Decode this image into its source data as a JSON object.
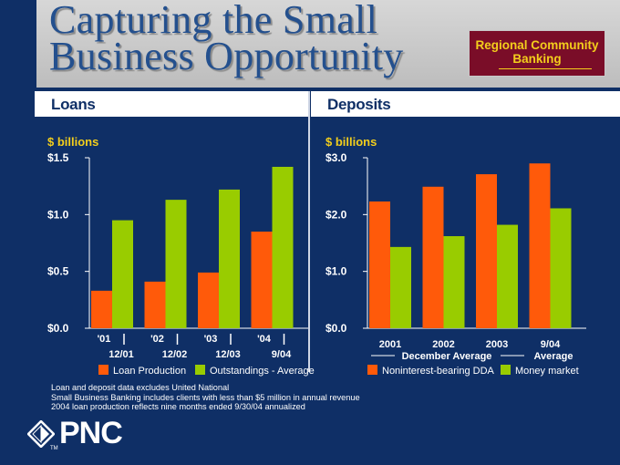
{
  "title": {
    "line1": "Capturing the Small",
    "line2": "Business Opportunity"
  },
  "badge": {
    "line1": "Regional Community",
    "line2": "Banking"
  },
  "colors": {
    "background": "#0f2f66",
    "orange": "#ff5a0a",
    "green": "#99cc00",
    "ylabel": "#f3ce1c",
    "badge": "#7a0d28"
  },
  "chart_data": [
    {
      "type": "bar",
      "title": "Loans",
      "ylabel": "$ billions",
      "ylim": [
        0,
        1.5
      ],
      "yticks": [
        "$0.0",
        "$0.5",
        "$1.0",
        "$1.5"
      ],
      "categories": [
        "'01",
        "'02",
        "'03",
        "'04"
      ],
      "sublabels": [
        "12/01",
        "12/02",
        "12/03",
        "9/04"
      ],
      "series": [
        {
          "name": "Loan Production",
          "color": "#ff5a0a",
          "values": [
            0.33,
            0.41,
            0.49,
            0.85
          ]
        },
        {
          "name": "Outstandings - Average",
          "color": "#99cc00",
          "values": [
            0.95,
            1.13,
            1.22,
            1.42
          ]
        }
      ]
    },
    {
      "type": "bar",
      "title": "Deposits",
      "ylabel": "$ billions",
      "ylim": [
        0,
        3.0
      ],
      "yticks": [
        "$0.0",
        "$1.0",
        "$2.0",
        "$3.0"
      ],
      "categories": [
        "2001",
        "2002",
        "2003",
        "9/04"
      ],
      "group_labels": [
        "December Average",
        "Average"
      ],
      "series": [
        {
          "name": "Noninterest-bearing DDA",
          "color": "#ff5a0a",
          "values": [
            2.23,
            2.49,
            2.71,
            2.9
          ]
        },
        {
          "name": "Money market",
          "color": "#99cc00",
          "values": [
            1.43,
            1.62,
            1.82,
            2.11
          ]
        }
      ]
    }
  ],
  "notes": [
    "Loan and deposit data excludes United National",
    "Small Business Banking includes clients with less than $5 million in annual revenue",
    "2004 loan production reflects nine months ended 9/30/04 annualized"
  ],
  "logo": {
    "text": "PNC",
    "tm": "TM"
  }
}
